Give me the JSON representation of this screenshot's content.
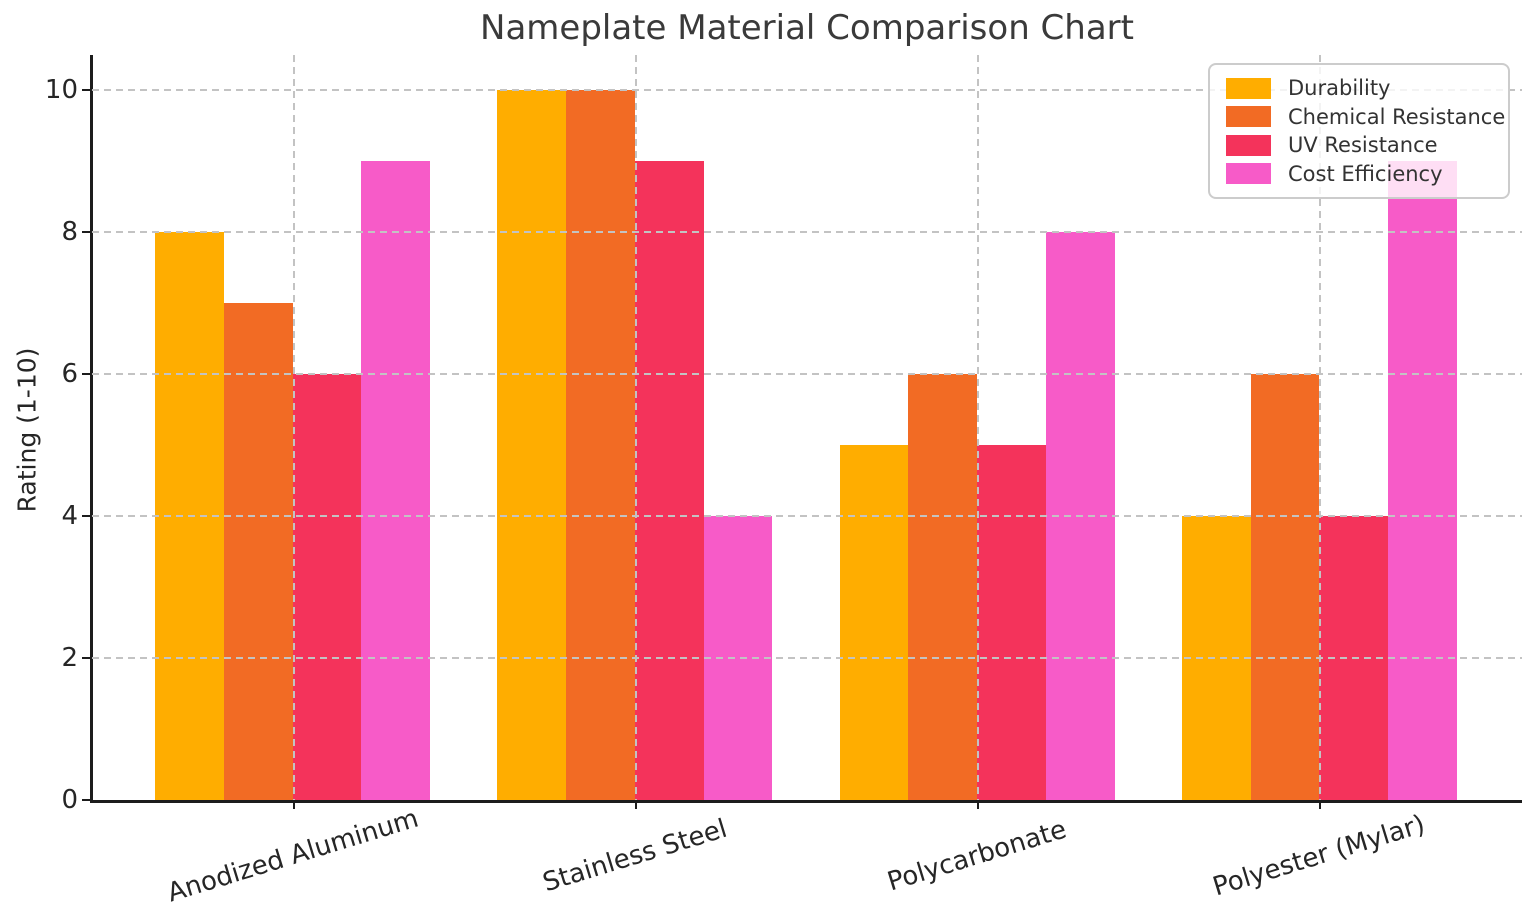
{
  "figure": {
    "background_color": "#ffffff",
    "text_color": "#262626",
    "axis_color": "#1c1c1c",
    "gridline_color": "#c3c3c3",
    "legend_border_color": "#cccccc"
  },
  "chart_data": {
    "type": "bar",
    "title": "Nameplate Material Comparison Chart",
    "xlabel": "",
    "ylabel": "Rating (1-10)",
    "categories": [
      "Anodized Aluminum",
      "Stainless Steel",
      "Polycarbonate",
      "Polyester (Mylar)"
    ],
    "series": [
      {
        "name": "Durability",
        "color": "#FFAD00",
        "values": [
          8,
          10,
          5,
          4
        ]
      },
      {
        "name": "Chemical Resistance",
        "color": "#F26B24",
        "values": [
          7,
          10,
          6,
          6
        ]
      },
      {
        "name": "UV Resistance",
        "color": "#F4335B",
        "values": [
          6,
          9,
          5,
          4
        ]
      },
      {
        "name": "Cost Efficiency",
        "color": "#F75BC8",
        "values": [
          9,
          4,
          8,
          9
        ]
      }
    ],
    "ylim": [
      0,
      10
    ],
    "yticks": [
      0,
      2,
      4,
      6,
      8,
      10
    ],
    "grid": "dashed gridlines on both axes, drawn over bars",
    "legend_position": "upper right",
    "x_tick_label_rotation_deg": 17
  }
}
